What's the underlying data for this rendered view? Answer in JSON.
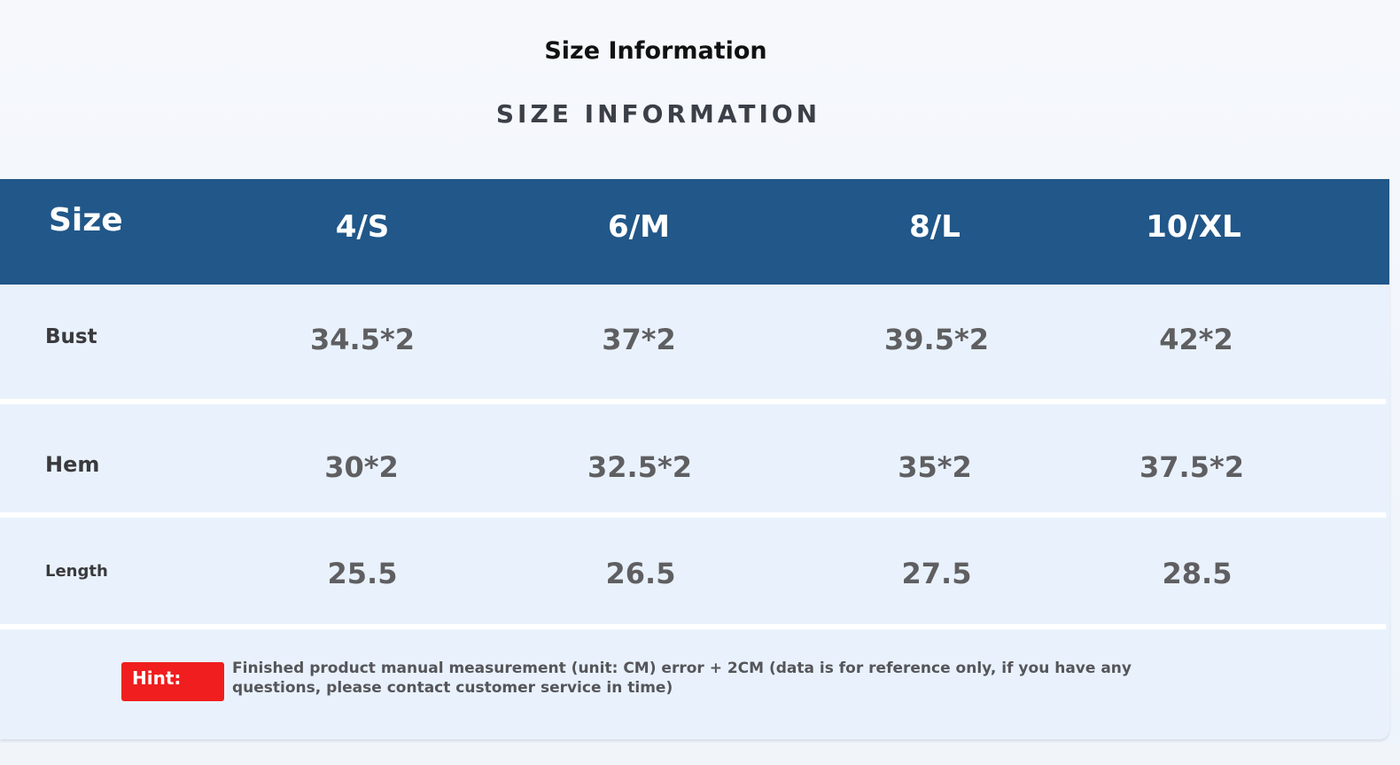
{
  "header": {
    "title": "Size Information",
    "subtitle": "SIZE INFORMATION"
  },
  "table": {
    "corner_label": "Size",
    "columns": [
      "4/S",
      "6/M",
      "8/L",
      "10/XL"
    ],
    "rows": [
      {
        "label": "Bust",
        "values": [
          "34.5*2",
          "37*2",
          "39.5*2",
          "42*2"
        ]
      },
      {
        "label": "Hem",
        "values": [
          "30*2",
          "32.5*2",
          "35*2",
          "37.5*2"
        ]
      },
      {
        "label": "Length",
        "values": [
          "25.5",
          "26.5",
          "27.5",
          "28.5"
        ]
      }
    ]
  },
  "hint": {
    "badge": "Hint:",
    "text": "Finished product manual measurement (unit: CM) error + 2CM (data is for reference only, if you have any questions, please contact customer service in time)"
  },
  "colors": {
    "header_bg": "#215789",
    "row_bg": "#e9f2fc",
    "hint_badge": "#f01e1e",
    "value_text": "#5f5f62"
  }
}
